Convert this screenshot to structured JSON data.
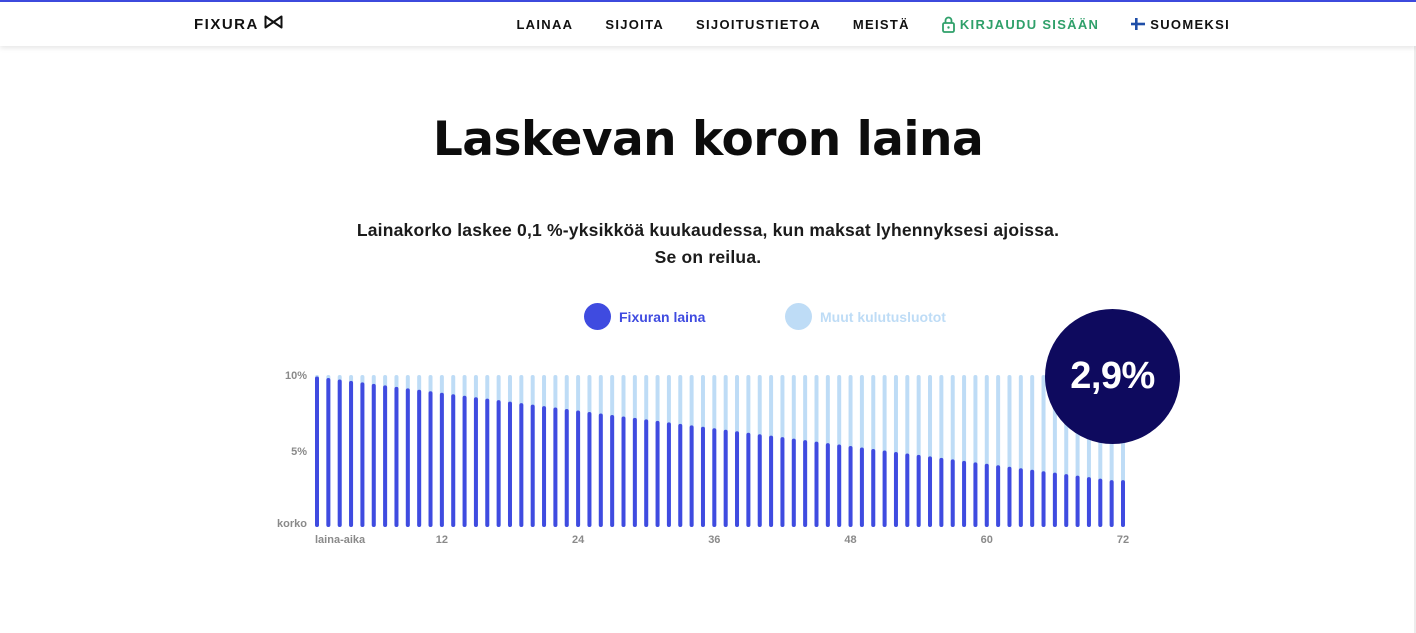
{
  "header": {
    "logo_text": "FIXURA",
    "nav": [
      {
        "label": "LAINAA"
      },
      {
        "label": "SIJOITA"
      },
      {
        "label": "SIJOITUSTIETOA"
      },
      {
        "label": "MEISTÄ"
      },
      {
        "label": "KIRJAUDU SISÄÄN"
      },
      {
        "label": "SUOMEKSI"
      }
    ]
  },
  "main": {
    "title": "Laskevan koron laina",
    "subtitle_line1": "Lainakorko laskee 0,1 %-yksikköä kuukaudessa, kun maksat lyhennyksesi ajoissa.",
    "subtitle_line2": "Se on reilua.",
    "highlight_rate": "2,9%"
  },
  "colors": {
    "accent": "#3e4be0",
    "fixura_bar": "#3f4be0",
    "other_bar": "#bedcf6",
    "bubble": "#0e0a5e",
    "login": "#2fa06a"
  },
  "chart_data": {
    "type": "bar",
    "legend": [
      "Fixuran laina",
      "Muut kulutusluotot"
    ],
    "x_label": "laina-aika",
    "y_label": "korko",
    "y_ticks": [
      "10%",
      "5%"
    ],
    "x_ticks": [
      12,
      24,
      36,
      48,
      60,
      72
    ],
    "ylim": [
      0,
      10
    ],
    "xlim": [
      1,
      72
    ],
    "series": [
      {
        "name": "Fixuran laina",
        "values": [
          9.9,
          9.8,
          9.7,
          9.6,
          9.5,
          9.4,
          9.3,
          9.2,
          9.1,
          9.0,
          8.9,
          8.8,
          8.7,
          8.6,
          8.5,
          8.4,
          8.3,
          8.2,
          8.1,
          8.0,
          7.9,
          7.8,
          7.7,
          7.6,
          7.5,
          7.4,
          7.3,
          7.2,
          7.1,
          7.0,
          6.9,
          6.8,
          6.7,
          6.6,
          6.5,
          6.4,
          6.3,
          6.2,
          6.1,
          6.0,
          5.9,
          5.8,
          5.7,
          5.6,
          5.5,
          5.4,
          5.3,
          5.2,
          5.1,
          5.0,
          4.9,
          4.8,
          4.7,
          4.6,
          4.5,
          4.4,
          4.3,
          4.2,
          4.1,
          4.0,
          3.9,
          3.8,
          3.7,
          3.6,
          3.5,
          3.4,
          3.3,
          3.2,
          3.1,
          3.0,
          2.9,
          2.9
        ]
      },
      {
        "name": "Muut kulutusluotot",
        "values": [
          10,
          10,
          10,
          10,
          10,
          10,
          10,
          10,
          10,
          10,
          10,
          10,
          10,
          10,
          10,
          10,
          10,
          10,
          10,
          10,
          10,
          10,
          10,
          10,
          10,
          10,
          10,
          10,
          10,
          10,
          10,
          10,
          10,
          10,
          10,
          10,
          10,
          10,
          10,
          10,
          10,
          10,
          10,
          10,
          10,
          10,
          10,
          10,
          10,
          10,
          10,
          10,
          10,
          10,
          10,
          10,
          10,
          10,
          10,
          10,
          10,
          10,
          10,
          10,
          10,
          10,
          10,
          10,
          10,
          10,
          10,
          10
        ]
      }
    ]
  }
}
